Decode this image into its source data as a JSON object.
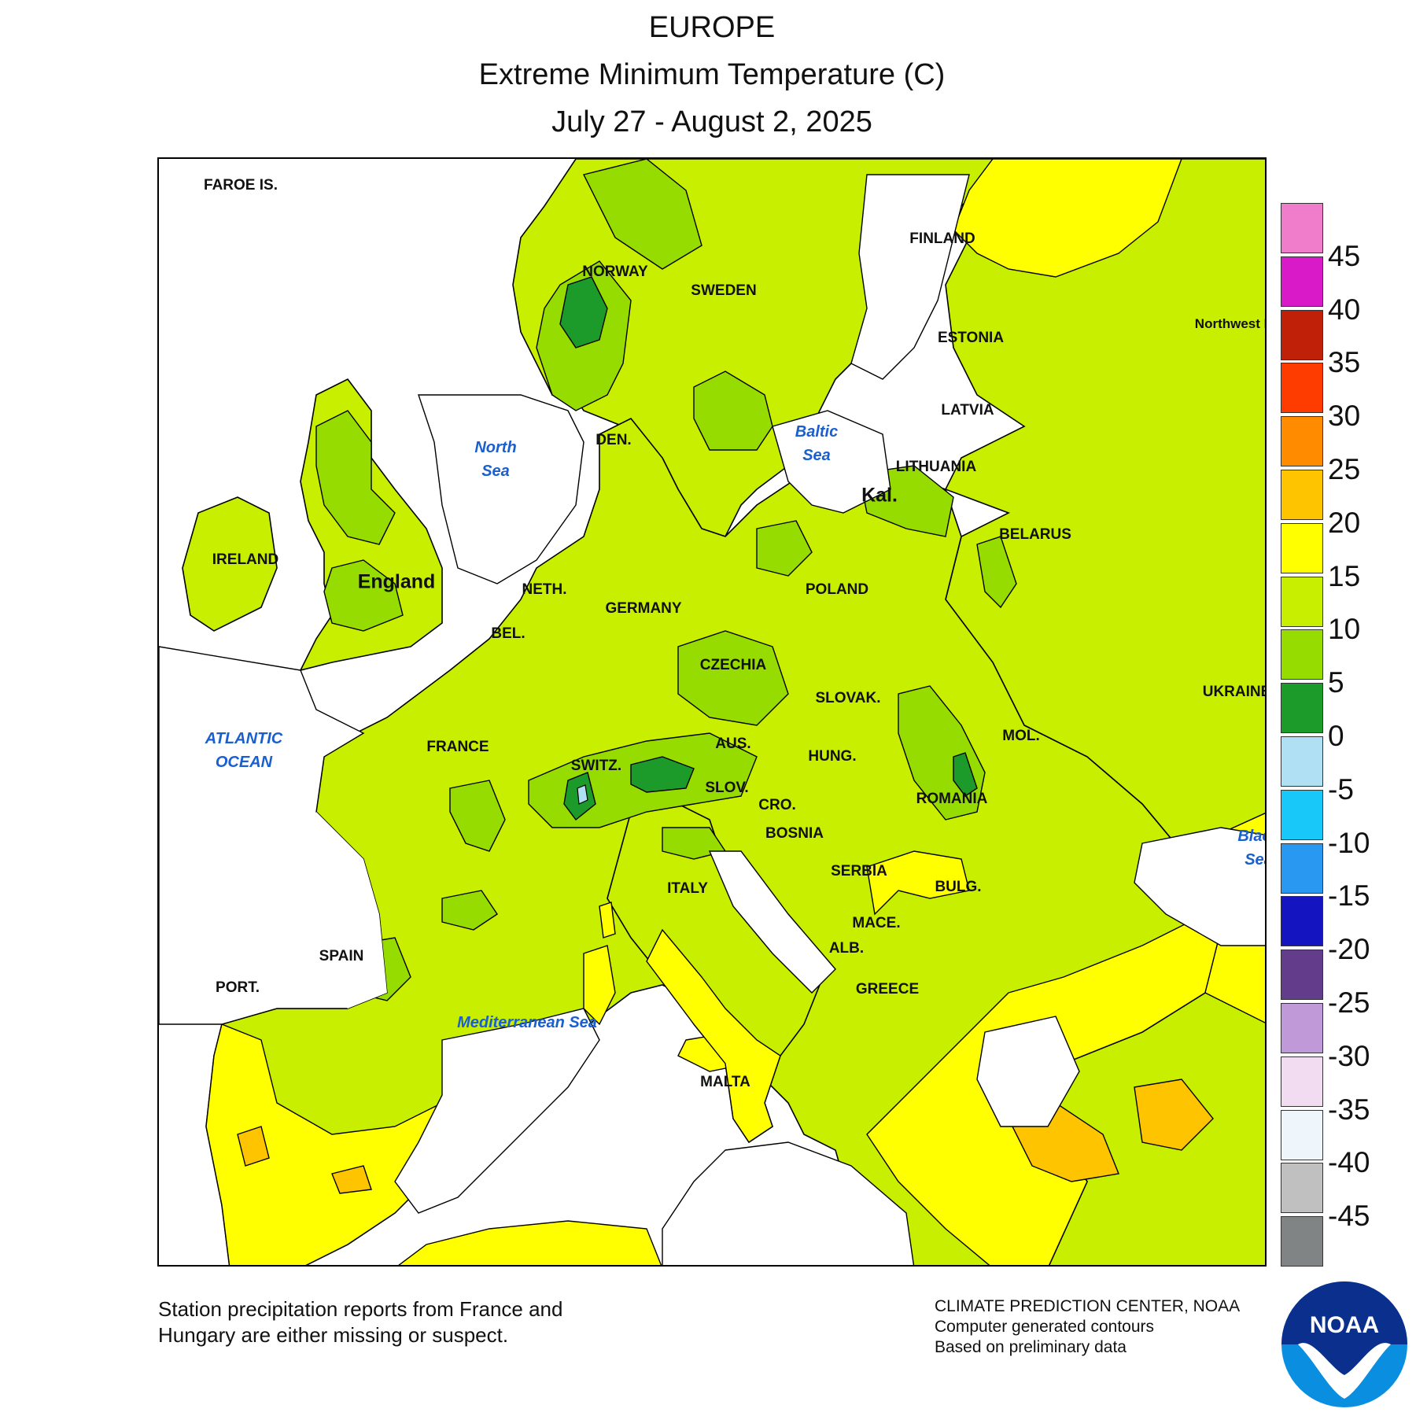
{
  "title": "EUROPE",
  "subtitle": "Extreme Minimum Temperature (C)",
  "date_range": "July 27 - August 2, 2025",
  "legend": {
    "ticks": [
      "45",
      "40",
      "35",
      "30",
      "25",
      "20",
      "15",
      "10",
      "5",
      "0",
      "-5",
      "-10",
      "-15",
      "-20",
      "-25",
      "-30",
      "-35",
      "-40",
      "-45"
    ],
    "colors": [
      "#f07ccc",
      "#d81ac8",
      "#c02008",
      "#ff3c00",
      "#ff8c00",
      "#ffc400",
      "#ffff00",
      "#c8ee00",
      "#96dc00",
      "#1c9a2a",
      "#b0e0f4",
      "#18c8f8",
      "#2898f0",
      "#1414c0",
      "#643c8c",
      "#c09ad8",
      "#f2dcf2",
      "#eef6fc",
      "#c0c0c0",
      "#808484"
    ]
  },
  "map": {
    "land_color": "#c8ee00",
    "water_color": "#ffffff",
    "countries": [
      "FAROE IS.",
      "NORWAY",
      "SWEDEN",
      "FINLAND",
      "ESTONIA",
      "LATVIA",
      "LITHUANIA",
      "Kal.",
      "DEN.",
      "IRELAND",
      "England",
      "NETH.",
      "BEL.",
      "GERMANY",
      "POLAND",
      "BELARUS",
      "Northwest District",
      "CZECHIA",
      "SLOVAK.",
      "UKRAINE",
      "FRANCE",
      "SWITZ.",
      "AUS.",
      "MOL.",
      "HUNG.",
      "ROMANIA",
      "SLOV.",
      "CRO.",
      "BOSNIA",
      "SERBIA",
      "BULG.",
      "MACE.",
      "ALB.",
      "GREECE",
      "ITALY",
      "SPAIN",
      "PORT.",
      "MALTA"
    ],
    "seas": [
      "North Sea",
      "Baltic Sea",
      "ATLANTIC OCEAN",
      "Mediterranean Sea",
      "Black Sea"
    ]
  },
  "footnote": {
    "line1": "Station precipitation reports from France and",
    "line2": "Hungary are either missing or suspect."
  },
  "credits": {
    "line1": "CLIMATE PREDICTION CENTER, NOAA",
    "line2": "Computer generated contours",
    "line3": "Based on preliminary data"
  },
  "logo_text": "NOAA"
}
